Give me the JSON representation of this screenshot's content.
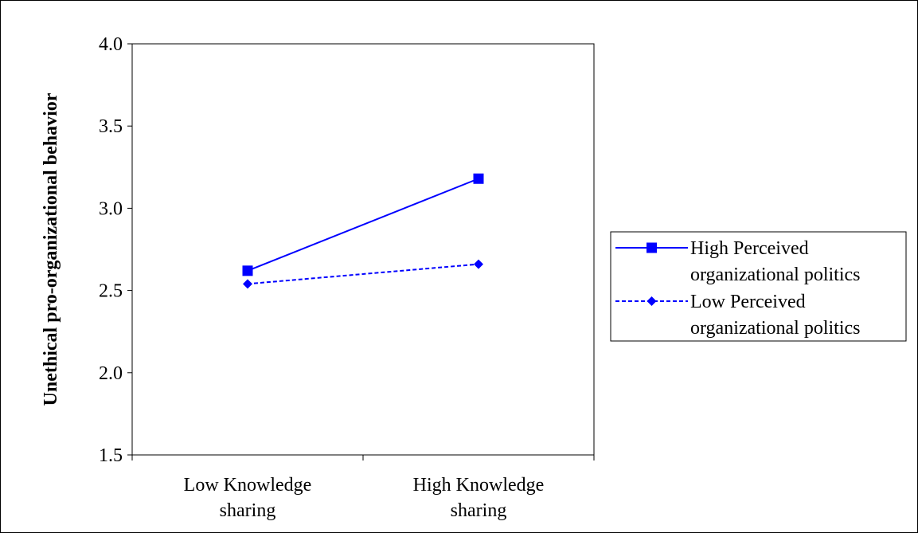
{
  "chart_data": {
    "type": "line",
    "title": "",
    "xlabel": "",
    "ylabel": "Unethical pro-organizational behavior",
    "categories": [
      [
        "Low Knowledge",
        "sharing"
      ],
      [
        "High Knowledge",
        "sharing"
      ]
    ],
    "ylim": [
      1.5,
      4.0
    ],
    "yticks": [
      "4.0",
      "3.5",
      "3.0",
      "2.5",
      "2.0",
      "1.5"
    ],
    "grid": false,
    "legend_position": "right",
    "series": [
      {
        "name": [
          "High Perceived",
          "organizational politics"
        ],
        "values": [
          2.62,
          3.18
        ],
        "color": "#0000ff",
        "marker": "square",
        "line_style": "solid"
      },
      {
        "name": [
          "Low Perceived",
          "organizational politics"
        ],
        "values": [
          2.54,
          2.66
        ],
        "color": "#0000ff",
        "marker": "diamond",
        "line_style": "dashed"
      }
    ]
  }
}
